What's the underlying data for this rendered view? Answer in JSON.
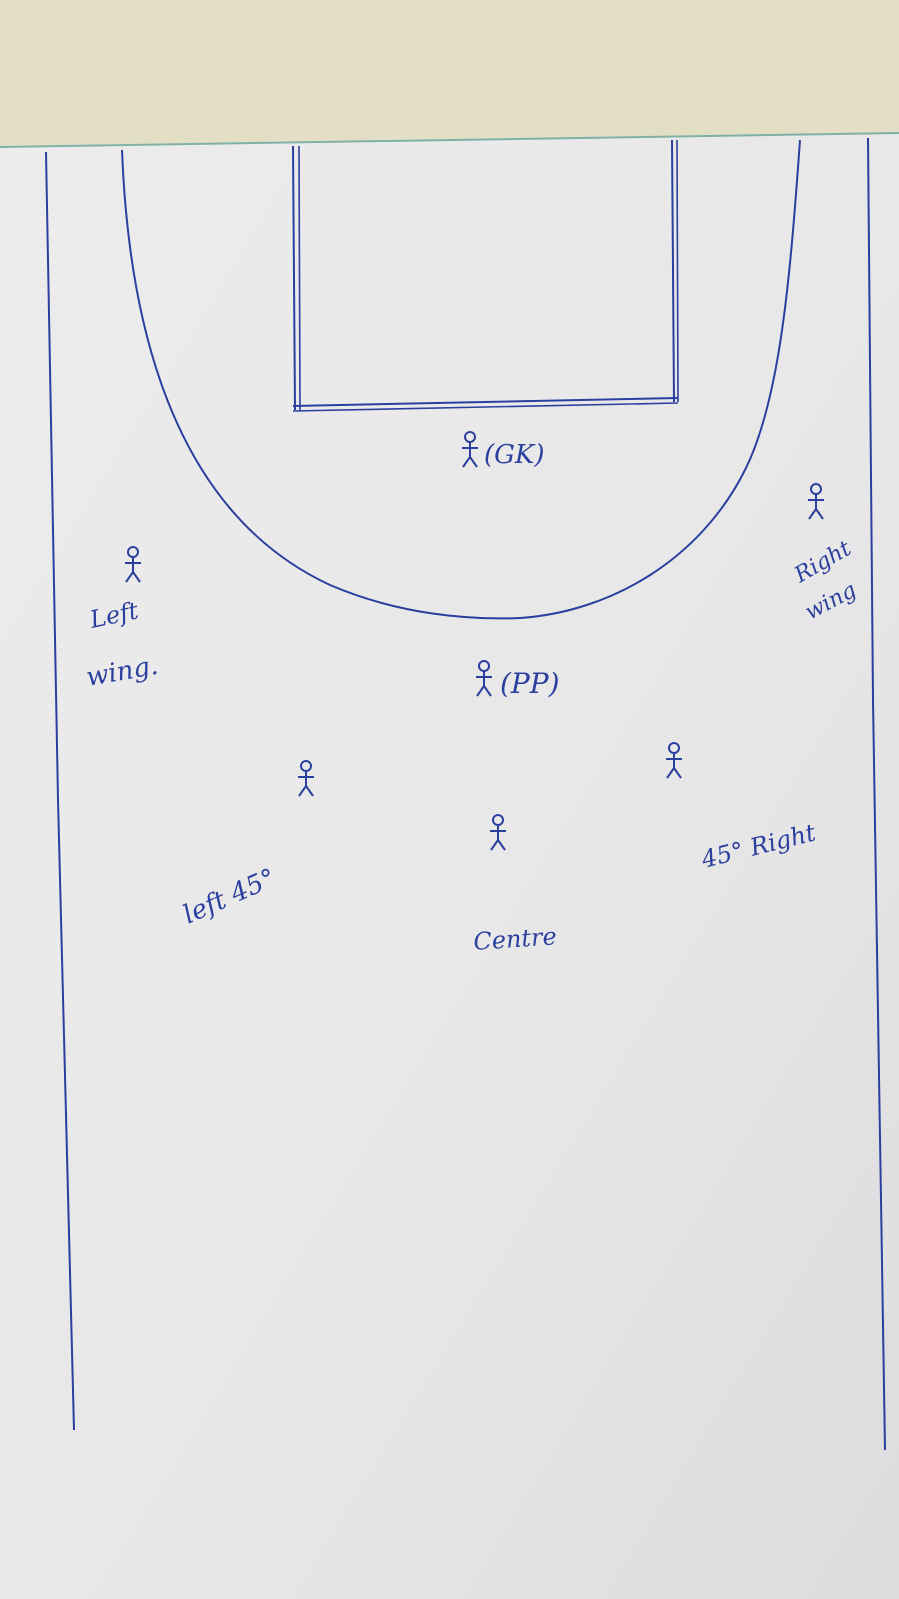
{
  "diagram": {
    "ink_color": "#2b3f9e",
    "paper_color": "#e9e9e9",
    "desk_color": "#e6e2c9",
    "players": [
      {
        "id": "gk",
        "label": "(GK)"
      },
      {
        "id": "left-wing",
        "label_line1": "Left",
        "label_line2": "wing."
      },
      {
        "id": "right-wing",
        "label_line1": "Right",
        "label_line2": "wing"
      },
      {
        "id": "pp",
        "label": "(PP)"
      },
      {
        "id": "left-45",
        "label": "left 45°"
      },
      {
        "id": "centre",
        "label": "Centre"
      },
      {
        "id": "right-45",
        "label": "45° Right"
      }
    ]
  }
}
